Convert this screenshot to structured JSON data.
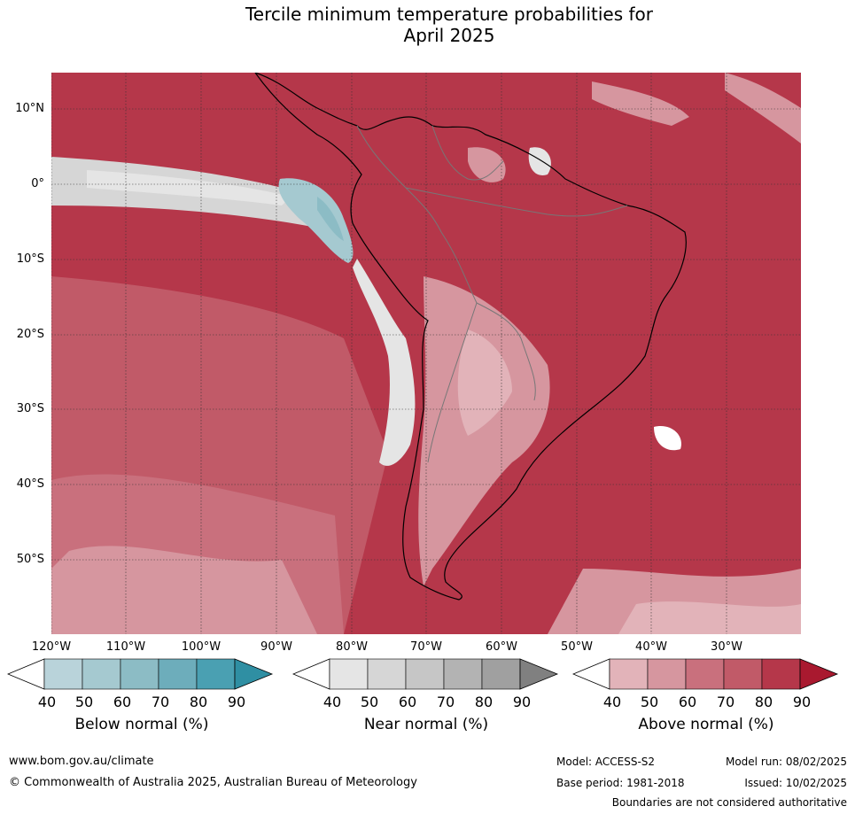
{
  "title_line1": "Tercile minimum temperature probabilities for",
  "title_line2": "April 2025",
  "lat_labels": [
    "10°N",
    "0°",
    "10°S",
    "20°S",
    "30°S",
    "40°S",
    "50°S"
  ],
  "lon_labels": [
    "120°W",
    "110°W",
    "100°W",
    "90°W",
    "80°W",
    "70°W",
    "60°W",
    "50°W",
    "40°W",
    "30°W"
  ],
  "colorbars": [
    {
      "title": "Below normal (%)",
      "ticks": [
        "40",
        "50",
        "60",
        "70",
        "80",
        "90"
      ],
      "colors": [
        "#ffffff",
        "#b9d3da",
        "#a5c9d0",
        "#8cbcc5",
        "#6dadbb",
        "#4aa0b2",
        "#2f8fa3"
      ]
    },
    {
      "title": "Near normal (%)",
      "ticks": [
        "40",
        "50",
        "60",
        "70",
        "80",
        "90"
      ],
      "colors": [
        "#ffffff",
        "#e5e5e5",
        "#d6d6d6",
        "#c6c6c6",
        "#b3b3b3",
        "#a0a0a0",
        "#808080"
      ]
    },
    {
      "title": "Above normal (%)",
      "ticks": [
        "40",
        "50",
        "60",
        "70",
        "80",
        "90"
      ],
      "colors": [
        "#ffffff",
        "#e2b3b9",
        "#d6969f",
        "#c9707d",
        "#c15a68",
        "#b5374a",
        "#a9192f"
      ]
    }
  ],
  "footer": {
    "website": "www.bom.gov.au/climate",
    "copyright": "© Commonwealth of Australia 2025, Australian Bureau of Meteorology",
    "model": "Model: ACCESS-S2",
    "base_period": "Base period: 1981-2018",
    "model_run": "Model run: 08/02/2025",
    "issued": "Issued: 10/02/2025",
    "disclaimer": "Boundaries are not considered authoritative"
  }
}
